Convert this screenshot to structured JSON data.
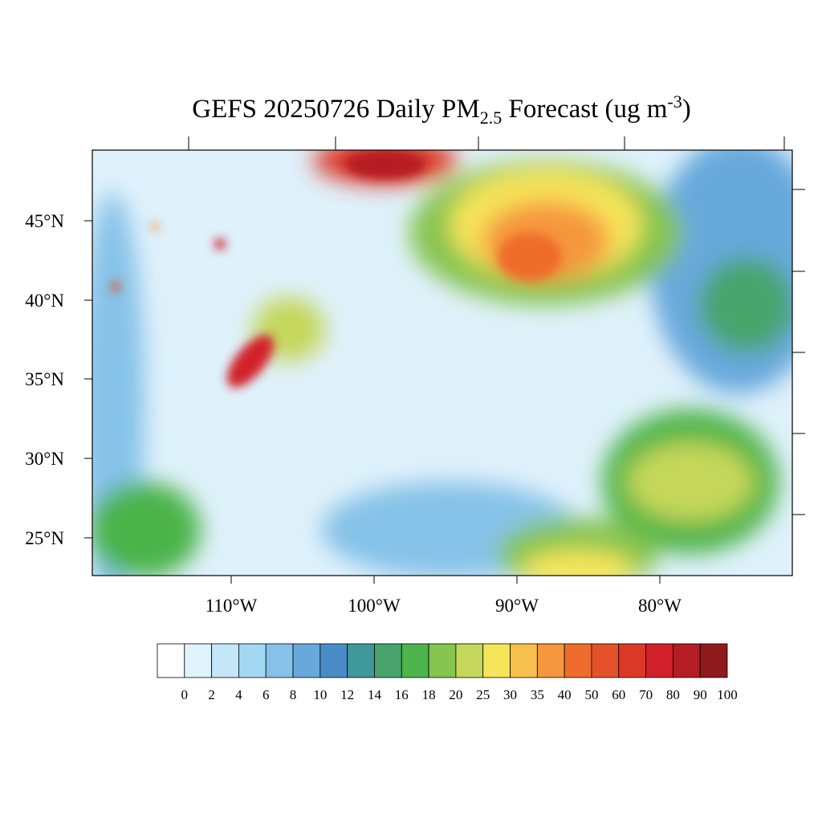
{
  "title": {
    "main": "GEFS 20250726 Daily PM",
    "sub": "2.5",
    "rest": " Forecast (ug m",
    "sup": "-3",
    "close": ")"
  },
  "map": {
    "lat_labels": [
      "45°N",
      "40°N",
      "35°N",
      "30°N",
      "25°N"
    ],
    "lon_labels": [
      "110°W",
      "100°W",
      "90°W",
      "80°W"
    ]
  },
  "colorbar": {
    "levels": [
      0,
      2,
      4,
      6,
      8,
      10,
      12,
      14,
      16,
      18,
      20,
      25,
      30,
      35,
      40,
      50,
      60,
      70,
      80,
      90,
      100
    ],
    "colors": [
      "#ffffff",
      "#e0f3fb",
      "#c3e7f8",
      "#a2d8f2",
      "#86c2e8",
      "#68a9dc",
      "#4a8cc8",
      "#3f999a",
      "#48a46c",
      "#4cb44a",
      "#85c44f",
      "#c4d75a",
      "#f6e55a",
      "#f7bf4b",
      "#f5973c",
      "#ef6c2c",
      "#e5512a",
      "#dc3827",
      "#d12029",
      "#b51d24",
      "#8f1a1c"
    ]
  }
}
